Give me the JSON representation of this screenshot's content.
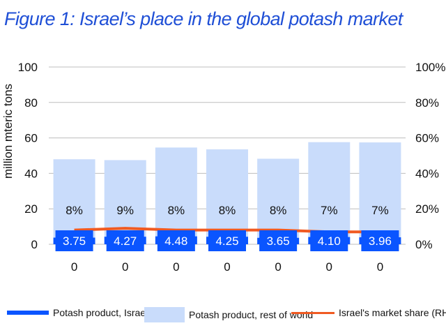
{
  "title": "Figure 1: Israel’s place in the global potash market",
  "colors": {
    "title": "#1f4fd6",
    "israel": "#0a55ff",
    "rest_of_world": "#c9dcfb",
    "market_share": "#f05a22",
    "grid": "#bdbdbd"
  },
  "legend": {
    "israel": "Potash product, Israel",
    "rest_of_world": "Potash product, rest of world",
    "market_share": "Israel's market share (RHS)"
  },
  "chart_data": {
    "type": "bar",
    "categories": [
      "0",
      "0",
      "0",
      "0",
      "0",
      "0",
      "0"
    ],
    "ylabel": "million mteric tons",
    "ylim": [
      0,
      100
    ],
    "yticks": [
      "0",
      "20",
      "40",
      "60",
      "80",
      "100"
    ],
    "y2lim": [
      0,
      1
    ],
    "y2ticks": [
      "0%",
      "20%",
      "40%",
      "60%",
      "80%",
      "100%"
    ],
    "grid": true,
    "legend_position": "bottom",
    "series": [
      {
        "name": "Potash product, Israel",
        "type": "bar",
        "values": [
          3.75,
          4.27,
          4.48,
          4.25,
          3.65,
          4.1,
          3.96
        ],
        "labels": [
          "3.75",
          "4.27",
          "4.48",
          "4.25",
          "3.65",
          "4.10",
          "3.96"
        ]
      },
      {
        "name": "Potash product, rest of world",
        "type": "bar",
        "values": [
          44.2,
          43.2,
          50.1,
          49.3,
          44.6,
          53.5,
          53.5
        ]
      },
      {
        "name": "Israel's market share (RHS)",
        "type": "line",
        "axis": "right",
        "values": [
          0.08,
          0.09,
          0.08,
          0.08,
          0.08,
          0.07,
          0.07
        ],
        "labels": [
          "8%",
          "9%",
          "8%",
          "8%",
          "8%",
          "7%",
          "7%"
        ]
      }
    ]
  }
}
